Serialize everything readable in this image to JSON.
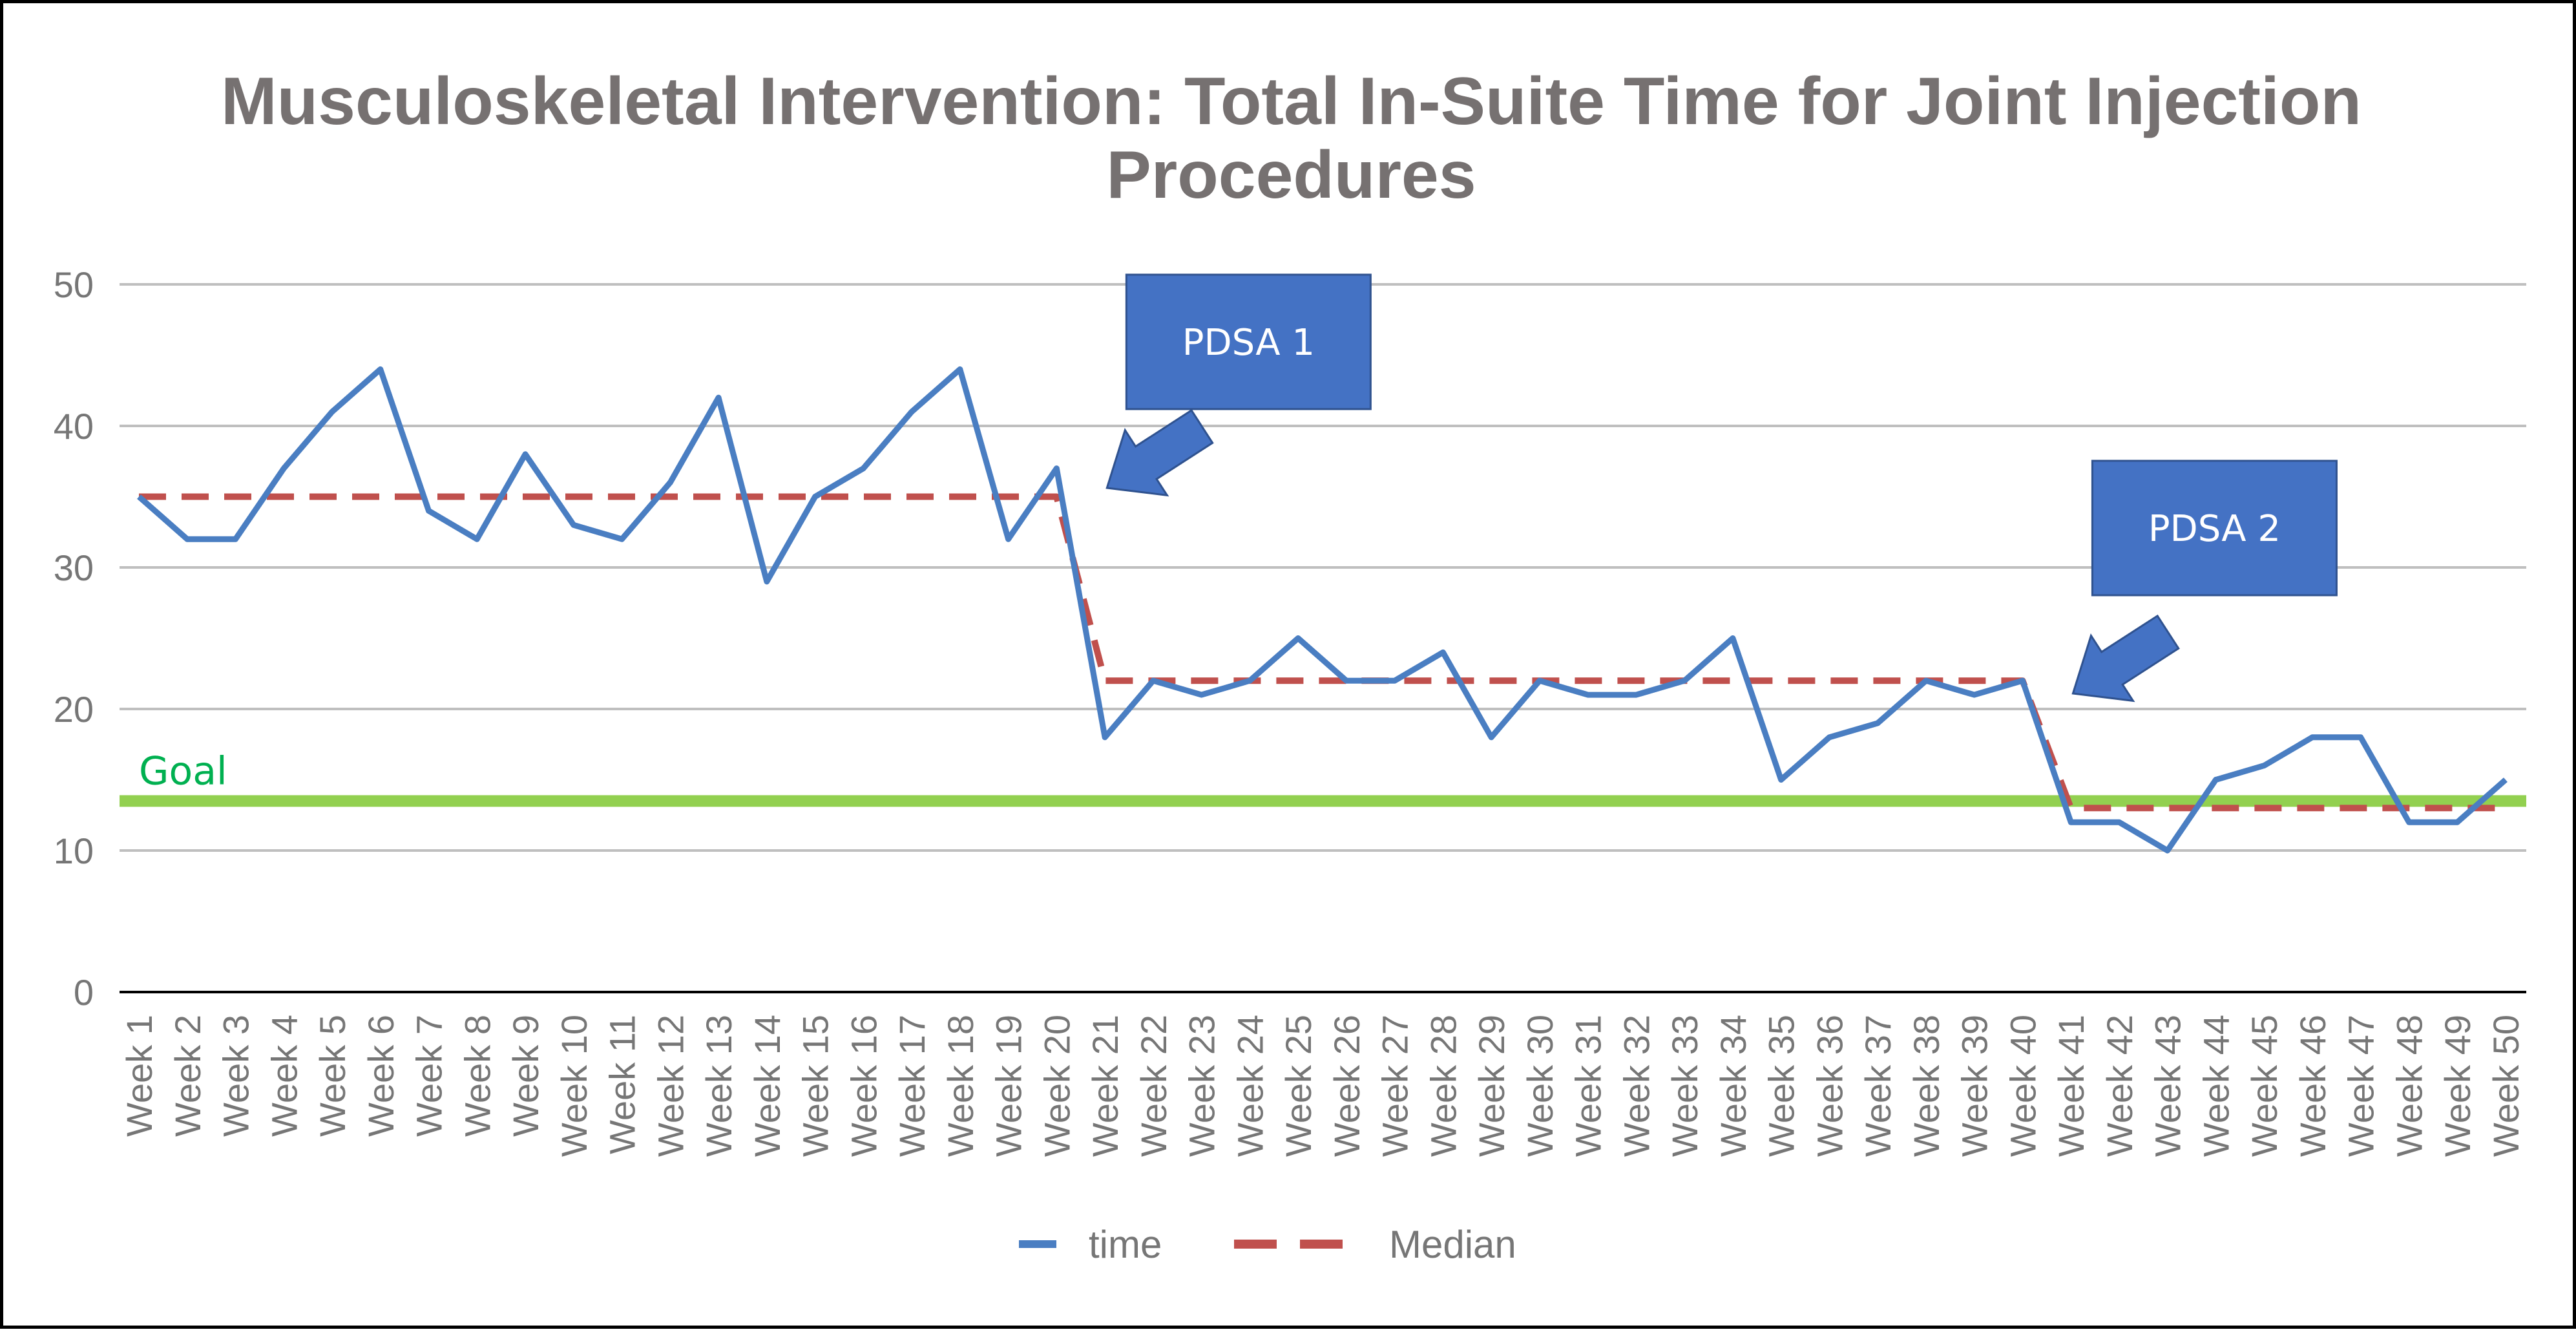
{
  "chart_data": {
    "type": "line",
    "title": "Musculoskeletal Intervention: Total In-Suite Time for Joint Injection Procedures",
    "title_lines": [
      "Musculoskeletal Intervention: Total In-Suite Time for Joint Injection",
      "Procedures"
    ],
    "categories": [
      "Week 1",
      "Week 2",
      "Week 3",
      "Week 4",
      "Week 5",
      "Week 6",
      "Week 7",
      "Week 8",
      "Week 9",
      "Week 10",
      "Week 11",
      "Week 12",
      "Week 13",
      "Week 14",
      "Week 15",
      "Week 16",
      "Week 17",
      "Week 18",
      "Week 19",
      "Week 20",
      "Week 21",
      "Week 22",
      "Week 23",
      "Week 24",
      "Week 25",
      "Week 26",
      "Week 27",
      "Week 28",
      "Week 29",
      "Week 30",
      "Week 31",
      "Week 32",
      "Week 33",
      "Week 34",
      "Week 35",
      "Week 36",
      "Week 37",
      "Week 38",
      "Week 39",
      "Week 40",
      "Week 41",
      "Week 42",
      "Week 43",
      "Week 44",
      "Week 45",
      "Week 46",
      "Week 47",
      "Week 48",
      "Week 49",
      "Week 50"
    ],
    "series": [
      {
        "name": "time",
        "color": "#4A7EC2",
        "style": "solid",
        "values": [
          35,
          32,
          32,
          37,
          41,
          44,
          34,
          32,
          38,
          33,
          32,
          36,
          42,
          29,
          35,
          37,
          41,
          44,
          32,
          37,
          18,
          22,
          21,
          22,
          25,
          22,
          22,
          24,
          18,
          22,
          21,
          21,
          22,
          25,
          15,
          18,
          19,
          22,
          21,
          22,
          12,
          12,
          10,
          15,
          16,
          18,
          18,
          12,
          12,
          15
        ]
      },
      {
        "name": "Median",
        "color": "#C0504D",
        "style": "dashed",
        "values": [
          35,
          35,
          35,
          35,
          35,
          35,
          35,
          35,
          35,
          35,
          35,
          35,
          35,
          35,
          35,
          35,
          35,
          35,
          35,
          35,
          22,
          22,
          22,
          22,
          22,
          22,
          22,
          22,
          22,
          22,
          22,
          22,
          22,
          22,
          22,
          22,
          22,
          22,
          22,
          22,
          13,
          13,
          13,
          13,
          13,
          13,
          13,
          13,
          13,
          13
        ]
      }
    ],
    "goal": {
      "label": "Goal",
      "value": 13.5,
      "color": "#92D050",
      "label_color": "#00B050"
    },
    "y_ticks": [
      0,
      10,
      20,
      30,
      40,
      50
    ],
    "ylim": [
      0,
      50
    ],
    "grid": true,
    "gridline_color": "#BFBFBF",
    "axis_color": "#000000",
    "legend_position": "bottom",
    "annotations": [
      {
        "label": "PDSA 1",
        "at_category": "Week 20",
        "color": "#4472C4"
      },
      {
        "label": "PDSA 2",
        "at_category": "Week 40",
        "color": "#4472C4"
      }
    ]
  }
}
